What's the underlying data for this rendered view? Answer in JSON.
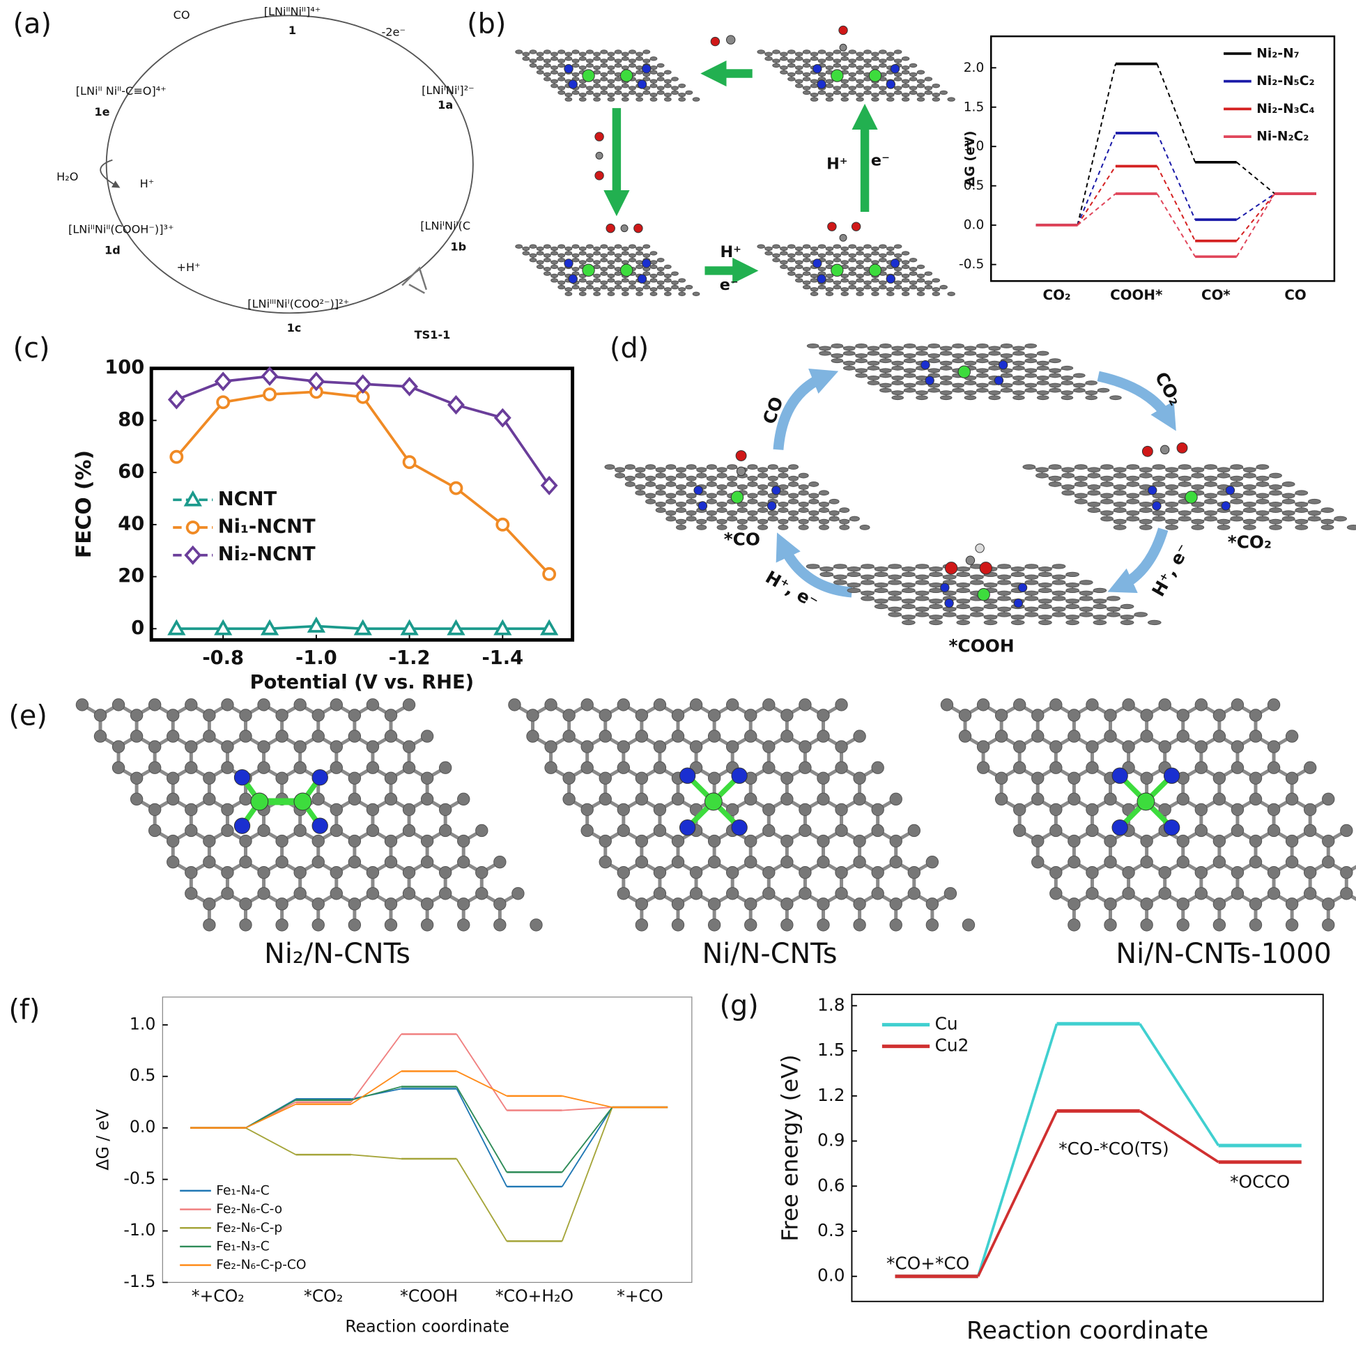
{
  "panel_labels": [
    "(a)",
    "(b)",
    "(c)",
    "(d)",
    "(e)",
    "(f)",
    "(g)"
  ],
  "panel_a": {
    "texts": [
      "CO",
      "[LNiᴵᴵNiᴵᴵ]⁴⁺",
      "1",
      "-2e⁻",
      "[LNiᴵNiᴵ]²⁻",
      "1a",
      "[LNiᴵᴵ Niᴵᴵ-C≡O]⁴⁺",
      "1e",
      "H₂O",
      "H⁺",
      "[LNiᴵᴵNiᴵᴵ(COOH⁻)]³⁺",
      "1d",
      "[LNiᴵNiᴵ(C",
      "1b",
      "+H⁺",
      "[LNiᴵᴵᴵNiᴵ(COO²⁻)]²⁺",
      "1c",
      "TS1-1"
    ]
  },
  "panel_b": {
    "texts": [
      "H⁺",
      "e⁻",
      "H⁺",
      "e⁻"
    ]
  },
  "panel_d": {
    "texts": [
      "CO",
      "CO₂",
      "*CO",
      "*CO₂",
      "*COOH",
      "H⁺, e⁻",
      "H⁺, e⁻"
    ]
  },
  "panel_e": {
    "captions": [
      "Ni₂/N-CNTs",
      "Ni/N-CNTs",
      "Ni/N-CNTs-1000"
    ]
  },
  "chart_data": [
    {
      "type": "energy_levels",
      "ylabel": "ΔG (eV)",
      "categories": [
        "CO₂",
        "COOH*",
        "CO*",
        "CO"
      ],
      "ylim": [
        -0.71,
        2.4
      ],
      "yticks": [
        -0.5,
        {
          "value": 0,
          "label": "0.0"
        },
        0.5,
        {
          "value": 1,
          "label": "1.0"
        },
        1.5,
        {
          "value": 2,
          "label": "2.0"
        }
      ],
      "connector": "dashed",
      "legend": "upper right",
      "series": [
        {
          "name": "Ni₂-N₇",
          "color": "#000000",
          "values": [
            0,
            2.05,
            0.8,
            0.4
          ]
        },
        {
          "name": "Ni₂-N₅C₂",
          "color": "#1a1aa8",
          "values": [
            0,
            1.17,
            0.07,
            0.4
          ]
        },
        {
          "name": "Ni₂-N₃C₄",
          "color": "#d42020",
          "values": [
            0,
            0.75,
            -0.2,
            0.4
          ]
        },
        {
          "name": "Ni-N₂C₂",
          "color": "#e0455a",
          "values": [
            0,
            0.4,
            -0.4,
            0.4
          ]
        }
      ]
    },
    {
      "type": "line",
      "xlabel": "Potential (V vs. RHE)",
      "ylabel": "FECO (%)",
      "x": [
        -0.7,
        -0.8,
        -0.9,
        -1.0,
        -1.1,
        -1.2,
        -1.3,
        -1.4,
        -1.5
      ],
      "xlim": [
        -0.646,
        -1.55
      ],
      "xticks": [
        -0.8,
        {
          "value": -1,
          "label": "-1.0"
        },
        -1.2,
        -1.4
      ],
      "ylim": [
        -4.3,
        100
      ],
      "yticks": [
        0,
        20,
        40,
        60,
        80,
        100
      ],
      "legend": "center left",
      "series": [
        {
          "name": "NCNT",
          "color": "#1b9a8c",
          "marker": "triangle",
          "values": [
            0,
            0,
            0,
            1,
            0,
            0,
            0,
            0,
            0
          ]
        },
        {
          "name": "Ni₁-NCNT",
          "color": "#f08a24",
          "marker": "circle",
          "values": [
            66,
            87,
            90,
            91,
            89,
            64,
            54,
            40,
            21
          ]
        },
        {
          "name": "Ni₂-NCNT",
          "color": "#6a3d9a",
          "marker": "diamond",
          "values": [
            88,
            95,
            97,
            95,
            94,
            93,
            86,
            81,
            55
          ]
        }
      ]
    },
    {
      "type": "energy_levels",
      "xlabel": "Reaction coordinate",
      "ylabel": "ΔG / eV",
      "categories": [
        "*+CO₂",
        "*CO₂",
        "*COOH",
        "*CO+H₂O",
        "*+CO"
      ],
      "ylim": [
        -1.5,
        1.27
      ],
      "yticks": [
        -1.5,
        {
          "value": -1,
          "label": "-1.0"
        },
        -0.5,
        {
          "value": 0,
          "label": "0.0"
        },
        0.5,
        {
          "value": 1,
          "label": "1.0"
        }
      ],
      "connector": "solid",
      "legend": "lower left",
      "series": [
        {
          "name": "Fe₁-N₄-C",
          "color": "#1f77b4",
          "values": [
            0,
            0.28,
            0.38,
            -0.57,
            0.2
          ]
        },
        {
          "name": "Fe₂-N₆-C-o",
          "color": "#f08080",
          "values": [
            0,
            0.25,
            0.91,
            0.17,
            0.2
          ]
        },
        {
          "name": "Fe₂-N₆-C-p",
          "color": "#a5a53a",
          "values": [
            0,
            -0.26,
            -0.3,
            -1.1,
            0.2
          ]
        },
        {
          "name": "Fe₁-N₃-C",
          "color": "#2e8b57",
          "values": [
            0,
            0.27,
            0.4,
            -0.43,
            0.2
          ]
        },
        {
          "name": "Fe₂-N₆-C-p-CO",
          "color": "#ff8c1a",
          "values": [
            0,
            0.23,
            0.55,
            0.31,
            0.2
          ]
        }
      ]
    },
    {
      "type": "energy_levels",
      "xlabel": "Reaction coordinate",
      "ylabel": "Free energy (eV)",
      "categories": [
        "*CO+*CO",
        "*CO-*CO(TS)",
        "*OCCO"
      ],
      "ylim": [
        -0.167,
        1.875
      ],
      "yticks": [
        {
          "value": 0,
          "label": "0.0"
        },
        0.3,
        0.6,
        0.9,
        1.2,
        1.5,
        1.8
      ],
      "connector": "solid",
      "legend": "upper left",
      "series": [
        {
          "name": "Cu",
          "color": "#40d0d0",
          "values": [
            0,
            1.68,
            0.87
          ]
        },
        {
          "name": "Cu2",
          "color": "#d03030",
          "values": [
            0,
            1.1,
            0.76
          ]
        }
      ]
    }
  ]
}
